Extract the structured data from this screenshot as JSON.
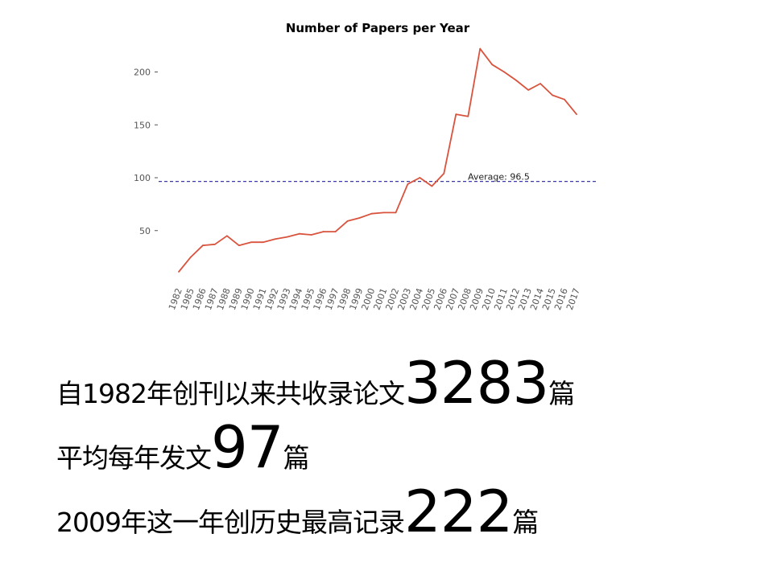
{
  "chart_data": {
    "type": "line",
    "title": "Number of Papers per Year",
    "xlabel": "",
    "ylabel": "",
    "categories": [
      "1982",
      "1985",
      "1986",
      "1987",
      "1988",
      "1989",
      "1990",
      "1991",
      "1992",
      "1993",
      "1994",
      "1995",
      "1996",
      "1997",
      "1998",
      "1999",
      "2000",
      "2001",
      "2002",
      "2003",
      "2004",
      "2005",
      "2006",
      "2007",
      "2008",
      "2009",
      "2010",
      "2011",
      "2012",
      "2013",
      "2014",
      "2015",
      "2016",
      "2017"
    ],
    "series": [
      {
        "values": [
          11,
          25,
          36,
          37,
          45,
          36,
          39,
          39,
          42,
          44,
          47,
          46,
          49,
          49,
          59,
          62,
          66,
          67,
          67,
          94,
          100,
          92,
          104,
          160,
          158,
          222,
          207,
          200,
          192,
          183,
          189,
          178,
          174,
          160
        ],
        "color": "#d9533d"
      }
    ],
    "average": {
      "value": 96.5,
      "label": "Average: 96.5",
      "color": "#3a3aa8"
    },
    "ylim": [
      0,
      230
    ],
    "yticks": [
      50,
      100,
      150,
      200
    ],
    "grid": false,
    "legend": "none"
  },
  "stats": [
    {
      "prefix": "自1982年创刊以来共收录论文",
      "number": "3283",
      "suffix": "篇"
    },
    {
      "prefix": "平均每年发文",
      "number": "97",
      "suffix": "篇"
    },
    {
      "prefix": "2009年这一年创历史最高记录",
      "number": "222",
      "suffix": "篇"
    }
  ]
}
